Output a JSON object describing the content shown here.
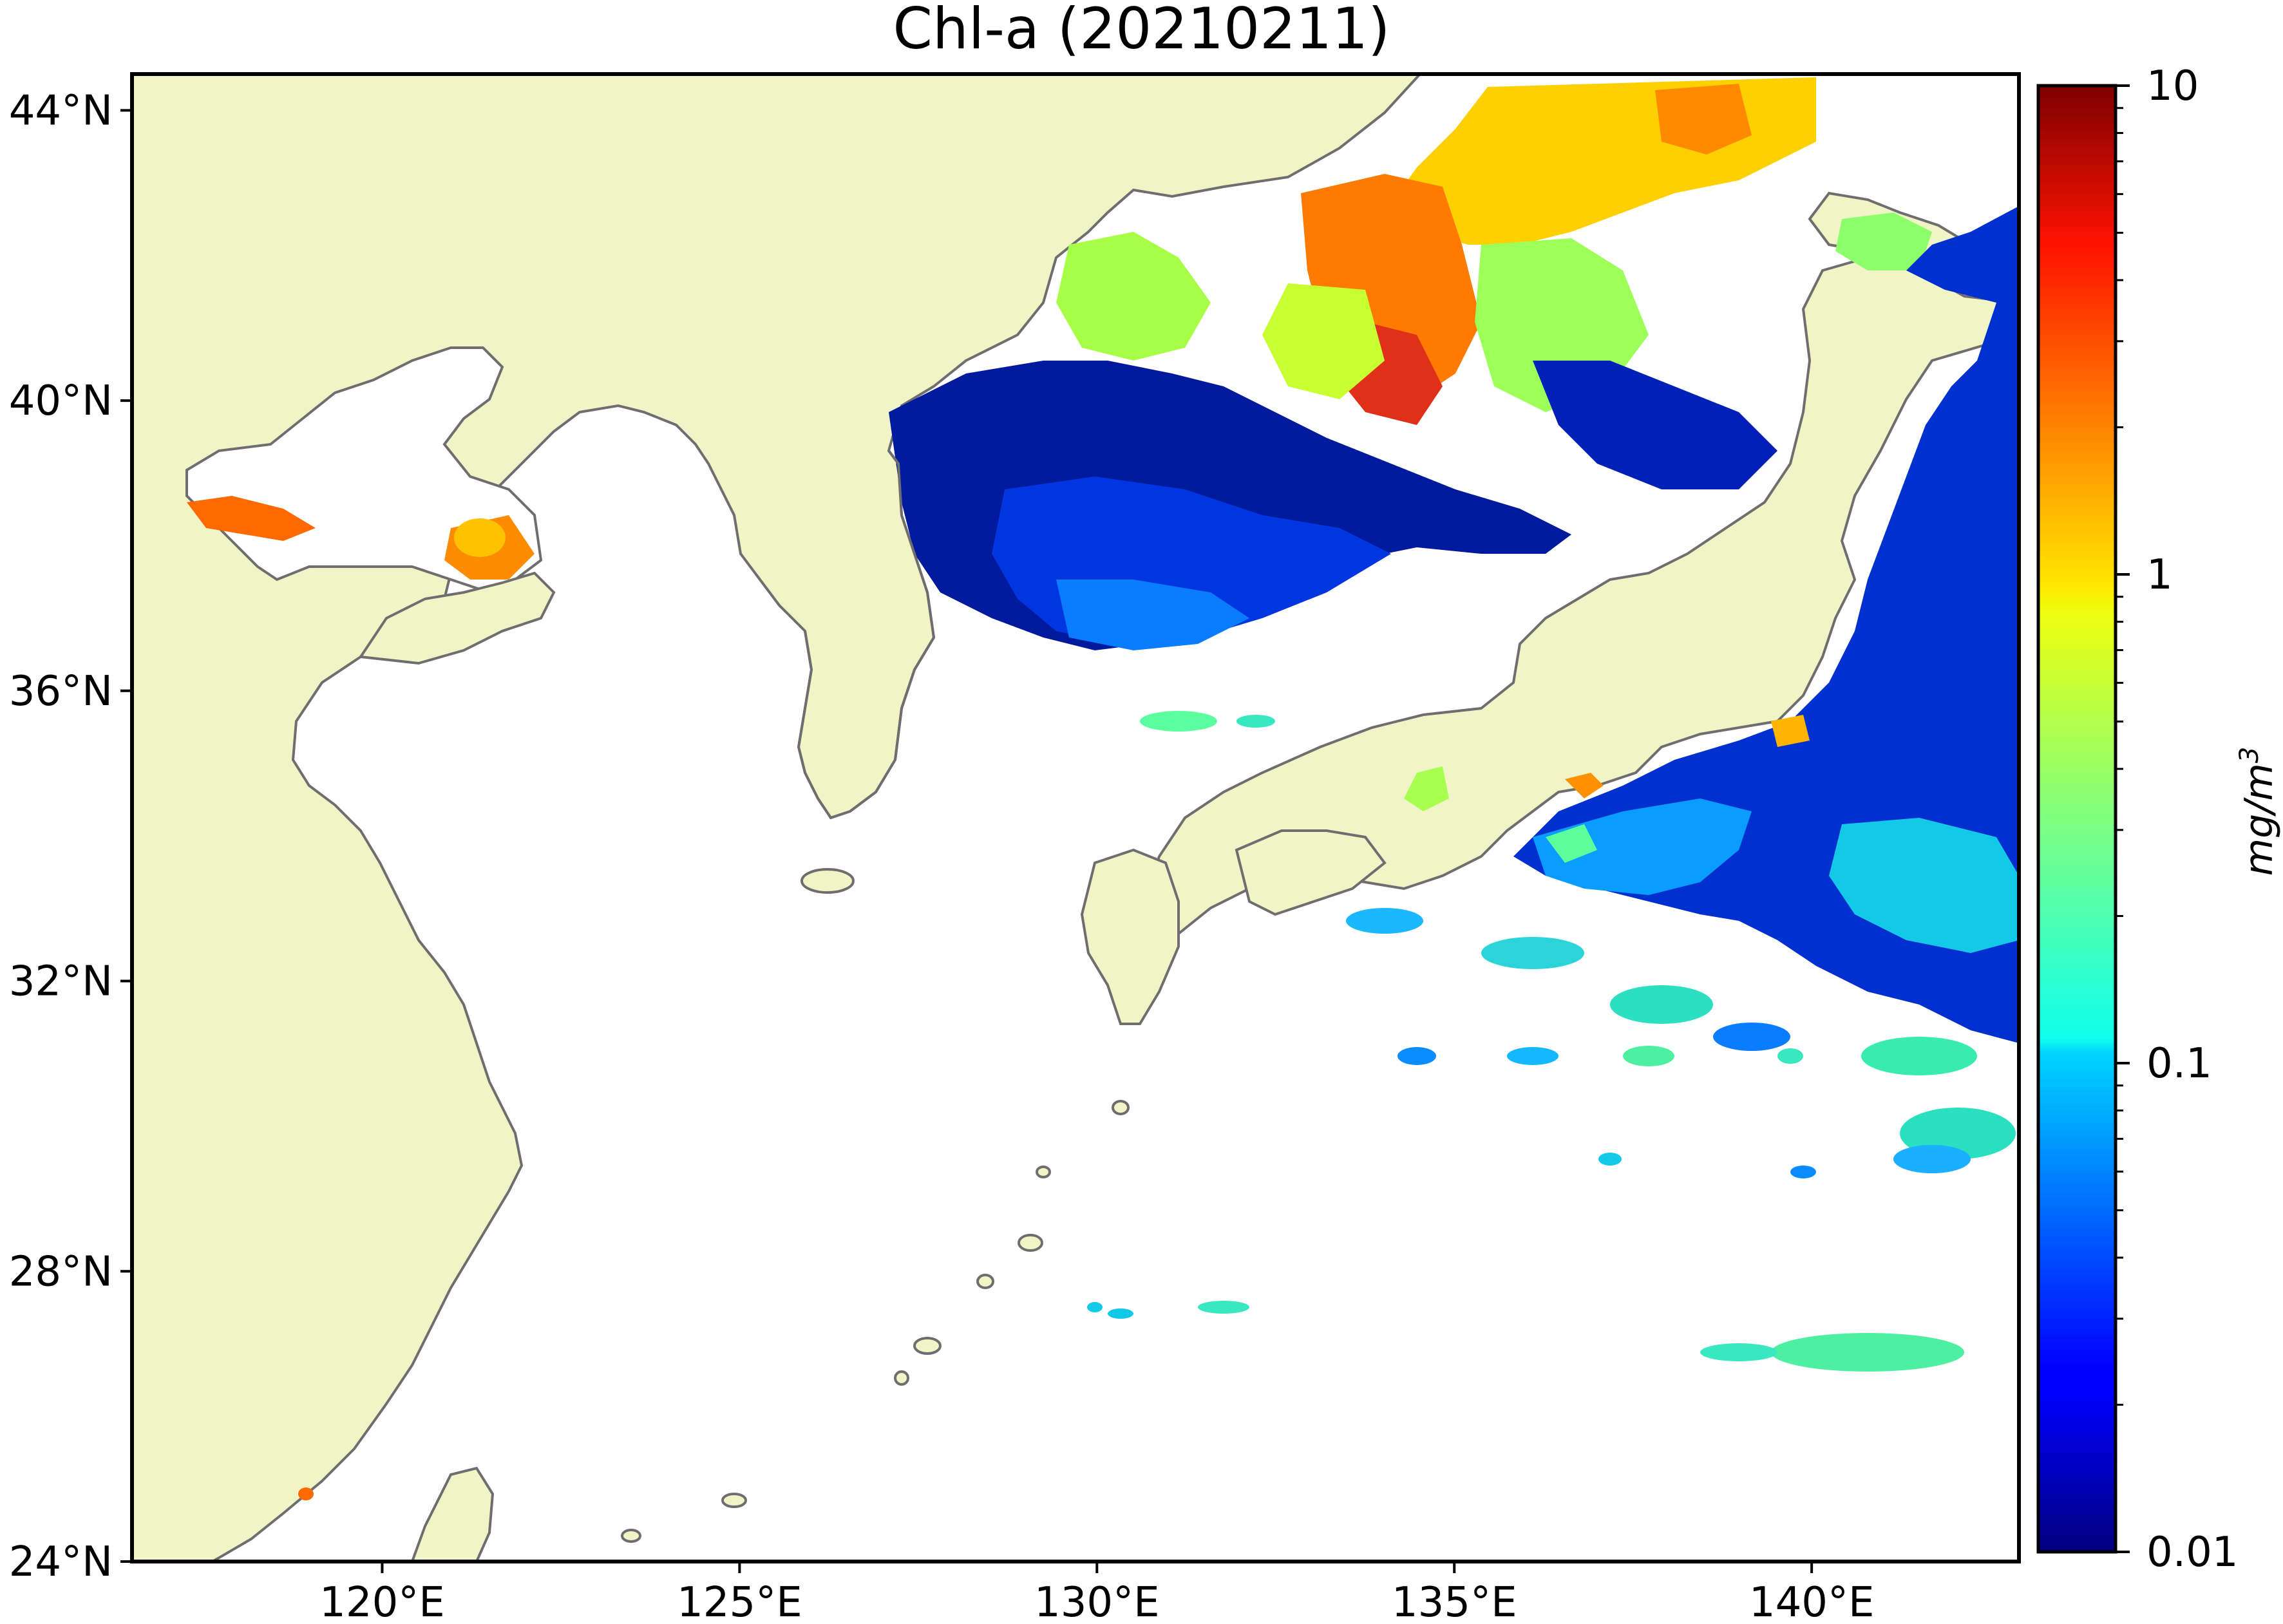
{
  "title": "Chl-a (20210211)",
  "map": {
    "lon_range": [
      116.5,
      142.9
    ],
    "lat_range": [
      24,
      44.5
    ],
    "land_color": "#f0f4c6",
    "ocean_color": "#ffffff",
    "coast_color": "#6e6e6e",
    "lon_ticks": [
      {
        "value": 120,
        "label": "120°E"
      },
      {
        "value": 125,
        "label": "125°E"
      },
      {
        "value": 130,
        "label": "130°E"
      },
      {
        "value": 135,
        "label": "135°E"
      },
      {
        "value": 140,
        "label": "140°E"
      }
    ],
    "lat_ticks": [
      {
        "value": 44,
        "label": "44°N"
      },
      {
        "value": 40,
        "label": "40°N"
      },
      {
        "value": 36,
        "label": "36°N"
      },
      {
        "value": 32,
        "label": "32°N"
      },
      {
        "value": 28,
        "label": "28°N"
      },
      {
        "value": 24,
        "label": "24°N"
      }
    ]
  },
  "colorbar": {
    "min": 0.01,
    "max": 10,
    "scale": "log",
    "colormap": "jet",
    "unit_label": "mg/m",
    "unit_exponent": "3",
    "ticks": [
      {
        "value": 10,
        "label": "10"
      },
      {
        "value": 1,
        "label": "1"
      },
      {
        "value": 0.1,
        "label": "0.1"
      },
      {
        "value": 0.01,
        "label": "0.01"
      }
    ]
  }
}
